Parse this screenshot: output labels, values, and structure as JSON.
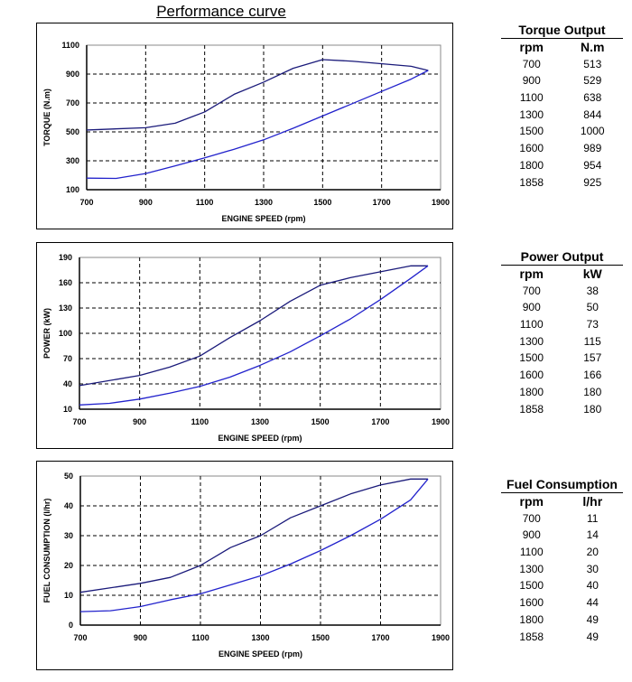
{
  "page_title": "Performance curve",
  "colors": {
    "upper_curve": "#1a1a7a",
    "lower_curve": "#2222cc",
    "grid": "#000000"
  },
  "chart_data": [
    {
      "type": "line",
      "ylabel": "TORQUE (N.m)",
      "xlabel": "ENGINE SPEED (rpm)",
      "xlim": [
        700,
        1900
      ],
      "ylim": [
        100,
        1100
      ],
      "xticks": [
        700,
        900,
        1100,
        1300,
        1500,
        1700,
        1900
      ],
      "yticks": [
        100,
        300,
        500,
        700,
        900,
        1100
      ],
      "grid": true,
      "series": [
        {
          "x": [
            700,
            900,
            1000,
            1100,
            1200,
            1300,
            1400,
            1500,
            1600,
            1800,
            1858
          ],
          "y": [
            513,
            529,
            560,
            638,
            760,
            844,
            940,
            1000,
            989,
            954,
            925
          ]
        },
        {
          "x": [
            700,
            800,
            900,
            1000,
            1100,
            1200,
            1300,
            1400,
            1500,
            1600,
            1700,
            1800,
            1858
          ],
          "y": [
            180,
            178,
            212,
            265,
            320,
            380,
            445,
            525,
            610,
            695,
            780,
            865,
            925
          ]
        }
      ]
    },
    {
      "type": "line",
      "ylabel": "POWER (kW)",
      "xlabel": "ENGINE SPEED (rpm)",
      "xlim": [
        700,
        1900
      ],
      "ylim": [
        10,
        190
      ],
      "xticks": [
        700,
        900,
        1100,
        1300,
        1500,
        1700,
        1900
      ],
      "yticks": [
        10,
        40,
        70,
        100,
        130,
        160,
        190
      ],
      "grid": true,
      "series": [
        {
          "x": [
            700,
            900,
            1000,
            1100,
            1200,
            1300,
            1400,
            1500,
            1600,
            1800,
            1858
          ],
          "y": [
            38,
            50,
            60,
            73,
            95,
            115,
            138,
            157,
            166,
            180,
            180
          ]
        },
        {
          "x": [
            700,
            800,
            900,
            1000,
            1100,
            1200,
            1300,
            1400,
            1500,
            1600,
            1700,
            1800,
            1858
          ],
          "y": [
            15,
            17,
            22,
            29,
            37,
            48,
            62,
            78,
            97,
            117,
            140,
            165,
            180
          ]
        }
      ]
    },
    {
      "type": "line",
      "ylabel": "FUEL CONSUMPTION (l/hr)",
      "xlabel": "ENGINE SPEED (rpm)",
      "xlim": [
        700,
        1900
      ],
      "ylim": [
        0,
        50
      ],
      "xticks": [
        700,
        900,
        1100,
        1300,
        1500,
        1700,
        1900
      ],
      "yticks": [
        0,
        10,
        20,
        30,
        40,
        50
      ],
      "grid": true,
      "series": [
        {
          "x": [
            700,
            900,
            1000,
            1100,
            1200,
            1300,
            1400,
            1500,
            1600,
            1700,
            1800,
            1858
          ],
          "y": [
            11,
            14,
            16,
            20,
            26,
            30,
            36,
            40,
            44,
            47,
            49,
            49
          ]
        },
        {
          "x": [
            700,
            800,
            900,
            1000,
            1100,
            1200,
            1300,
            1400,
            1500,
            1600,
            1700,
            1800,
            1858
          ],
          "y": [
            4.5,
            4.8,
            6.2,
            8.5,
            10.5,
            13.5,
            16.5,
            20.5,
            25,
            30,
            35.5,
            42,
            49
          ]
        }
      ]
    }
  ],
  "tables": [
    {
      "title": "Torque Output",
      "cols": [
        "rpm",
        "N.m"
      ],
      "rows": [
        [
          "700",
          "513"
        ],
        [
          "900",
          "529"
        ],
        [
          "1100",
          "638"
        ],
        [
          "1300",
          "844"
        ],
        [
          "1500",
          "1000"
        ],
        [
          "1600",
          "989"
        ],
        [
          "1800",
          "954"
        ],
        [
          "1858",
          "925"
        ]
      ]
    },
    {
      "title": "Power Output",
      "cols": [
        "rpm",
        "kW"
      ],
      "rows": [
        [
          "700",
          "38"
        ],
        [
          "900",
          "50"
        ],
        [
          "1100",
          "73"
        ],
        [
          "1300",
          "115"
        ],
        [
          "1500",
          "157"
        ],
        [
          "1600",
          "166"
        ],
        [
          "1800",
          "180"
        ],
        [
          "1858",
          "180"
        ]
      ]
    },
    {
      "title": "Fuel Consumption",
      "cols": [
        "rpm",
        "l/hr"
      ],
      "rows": [
        [
          "700",
          "11"
        ],
        [
          "900",
          "14"
        ],
        [
          "1100",
          "20"
        ],
        [
          "1300",
          "30"
        ],
        [
          "1500",
          "40"
        ],
        [
          "1600",
          "44"
        ],
        [
          "1800",
          "49"
        ],
        [
          "1858",
          "49"
        ]
      ]
    }
  ]
}
